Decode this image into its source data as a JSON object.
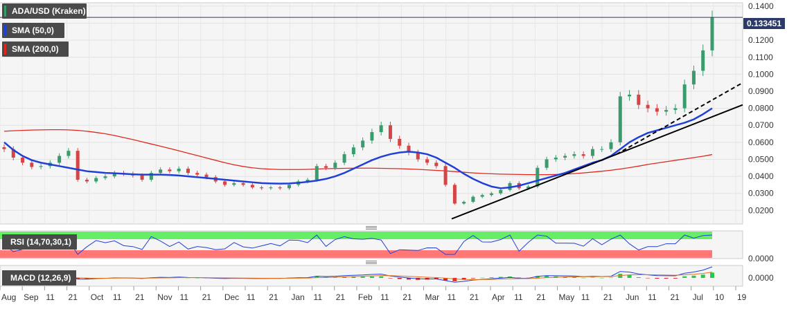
{
  "chart_title": "ADA/USD (Kraken)",
  "indicators": {
    "sma50": "SMA (50,0)",
    "sma200": "SMA (200,0)",
    "rsi": "RSI (14,70,30,1)",
    "macd": "MACD (12,26,9)"
  },
  "current_price_label": "0.133451",
  "colors": {
    "candle_up": "#3a9c6c",
    "candle_down": "#d64545",
    "sma50": "#1f3fd6",
    "sma200": "#e0271f",
    "trendline": "#000000",
    "rsi_overbought": "#66ee66",
    "rsi_oversold": "#ff7777",
    "macd_line": "#1f3fd6",
    "signal_line": "#e0731f"
  },
  "chart_data": {
    "type": "candlestick",
    "symbol": "ADA/USD",
    "ylim": [
      0.0,
      0.14
    ],
    "y_ticks": [
      "0.0200",
      "0.0300",
      "0.0400",
      "0.0500",
      "0.0600",
      "0.0700",
      "0.0800",
      "0.0900",
      "0.1000",
      "0.1100",
      "0.1200",
      "0.1300",
      "0.1400"
    ],
    "x_ticks": [
      "Aug",
      "Sep",
      "11",
      "21",
      "Oct",
      "11",
      "21",
      "Nov",
      "11",
      "21",
      "Dec",
      "11",
      "21",
      "Jan",
      "11",
      "21",
      "Feb",
      "11",
      "21",
      "Mar",
      "11",
      "21",
      "Apr",
      "11",
      "21",
      "May",
      "11",
      "21",
      "Jun",
      "11",
      "21",
      "Jul",
      "10",
      "19"
    ],
    "close_series": [
      0.056,
      0.051,
      0.048,
      0.0455,
      0.046,
      0.048,
      0.052,
      0.055,
      0.038,
      0.037,
      0.039,
      0.04,
      0.042,
      0.0415,
      0.0405,
      0.038,
      0.042,
      0.044,
      0.043,
      0.0445,
      0.042,
      0.041,
      0.0395,
      0.037,
      0.035,
      0.036,
      0.035,
      0.0335,
      0.033,
      0.0335,
      0.033,
      0.035,
      0.037,
      0.038,
      0.046,
      0.045,
      0.048,
      0.053,
      0.057,
      0.061,
      0.066,
      0.07,
      0.062,
      0.058,
      0.054,
      0.05,
      0.048,
      0.046,
      0.035,
      0.024,
      0.025,
      0.028,
      0.029,
      0.03,
      0.032,
      0.036,
      0.033,
      0.034,
      0.045,
      0.05,
      0.051,
      0.052,
      0.053,
      0.052,
      0.056,
      0.056,
      0.06,
      0.087,
      0.088,
      0.082,
      0.08,
      0.078,
      0.079,
      0.08,
      0.094,
      0.102,
      0.114,
      0.1334
    ],
    "sma50_series": [
      0.06,
      0.0555,
      0.052,
      0.0495,
      0.048,
      0.047,
      0.046,
      0.045,
      0.044,
      0.043,
      0.0425,
      0.042,
      0.0418,
      0.0415,
      0.0412,
      0.041,
      0.041,
      0.041,
      0.0408,
      0.0405,
      0.04,
      0.0395,
      0.039,
      0.0385,
      0.038,
      0.0375,
      0.037,
      0.0365,
      0.036,
      0.0358,
      0.0357,
      0.0358,
      0.0362,
      0.0368,
      0.0375,
      0.0385,
      0.04,
      0.042,
      0.0445,
      0.047,
      0.0495,
      0.0515,
      0.053,
      0.054,
      0.0545,
      0.054,
      0.053,
      0.051,
      0.048,
      0.045,
      0.0415,
      0.0385,
      0.036,
      0.034,
      0.033,
      0.0335,
      0.0345,
      0.036,
      0.0375,
      0.039,
      0.0405,
      0.042,
      0.044,
      0.046,
      0.048,
      0.0495,
      0.052,
      0.056,
      0.06,
      0.063,
      0.0655,
      0.067,
      0.0685,
      0.07,
      0.0715,
      0.0735,
      0.0765,
      0.08
    ],
    "sma200_series": [
      0.0665,
      0.0668,
      0.067,
      0.0672,
      0.0673,
      0.0674,
      0.0674,
      0.0673,
      0.067,
      0.0665,
      0.0658,
      0.065,
      0.064,
      0.0628,
      0.0616,
      0.0603,
      0.059,
      0.0577,
      0.0564,
      0.055,
      0.0536,
      0.0522,
      0.0508,
      0.0494,
      0.048,
      0.0468,
      0.0458,
      0.045,
      0.0445,
      0.0442,
      0.044,
      0.044,
      0.044,
      0.0441,
      0.0443,
      0.0445,
      0.0446,
      0.0447,
      0.0448,
      0.0448,
      0.0448,
      0.0447,
      0.0446,
      0.0445,
      0.0443,
      0.0441,
      0.0438,
      0.0435,
      0.0432,
      0.0428,
      0.0424,
      0.042,
      0.0417,
      0.0415,
      0.0413,
      0.0412,
      0.0411,
      0.041,
      0.041,
      0.041,
      0.0411,
      0.0413,
      0.0416,
      0.042,
      0.0425,
      0.043,
      0.0436,
      0.0443,
      0.0451,
      0.046,
      0.047,
      0.0478,
      0.0486,
      0.0494,
      0.0502,
      0.051,
      0.0518,
      0.0528
    ],
    "trendlines": [
      {
        "style": "solid",
        "from": [
          0.015
        ],
        "to": [
          0.082
        ]
      },
      {
        "style": "dashed",
        "from": [
          0.053
        ],
        "to": [
          0.095
        ]
      }
    ],
    "rsi": {
      "levels": [
        70,
        30
      ]
    },
    "macd": {
      "y_tick": "0.0000"
    },
    "rsi_y_tick": "0.0000"
  }
}
